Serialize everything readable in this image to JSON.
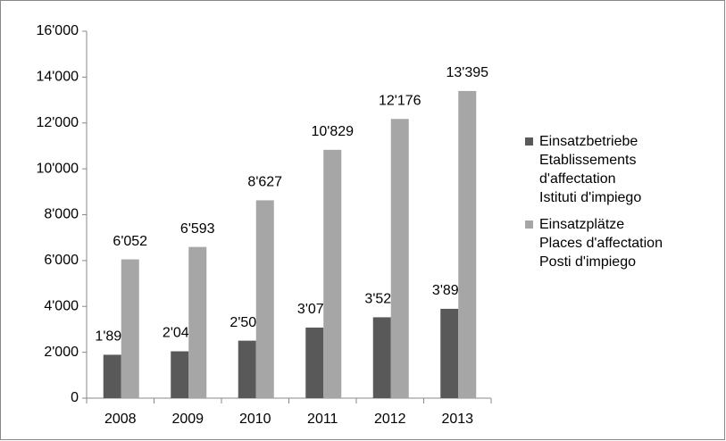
{
  "chart_data": {
    "type": "bar",
    "categories": [
      "2008",
      "2009",
      "2010",
      "2011",
      "2012",
      "2013"
    ],
    "series": [
      {
        "name": "Einsatzbetriebe\nEtablissements\nd'affectation\nIstituti d'impiego",
        "color": "#595959",
        "values": [
          1892,
          2043,
          2506,
          3078,
          3527,
          3896
        ],
        "value_labels": [
          "1'892",
          "2'043",
          "2'506",
          "3'078",
          "3'527",
          "3'896"
        ]
      },
      {
        "name": "Einsatzplätze\nPlaces d'affectation\nPosti d'impiego",
        "color": "#a6a6a6",
        "values": [
          6052,
          6593,
          8627,
          10829,
          12176,
          13395
        ],
        "value_labels": [
          "6'052",
          "6'593",
          "8'627",
          "10'829",
          "12'176",
          "13'395"
        ]
      }
    ],
    "ylim": [
      0,
      16000
    ],
    "yticks": [
      0,
      {
        "value": 2000,
        "label": "2'000"
      },
      {
        "value": 4000,
        "label": "4'000"
      },
      {
        "value": 6000,
        "label": "6'000"
      },
      {
        "value": 8000,
        "label": "8'000"
      },
      {
        "value": 10000,
        "label": "10'000"
      },
      {
        "value": 12000,
        "label": "12'000"
      },
      {
        "value": 14000,
        "label": "14'000"
      },
      {
        "value": 16000,
        "label": "16'000"
      }
    ],
    "grid": false,
    "legend": "right"
  }
}
